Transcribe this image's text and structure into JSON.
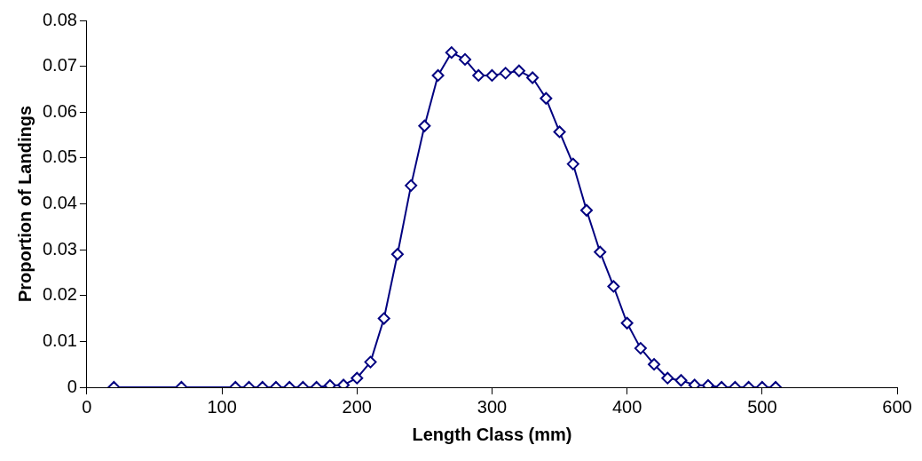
{
  "chart_data": {
    "type": "line",
    "xlabel": "Length Class (mm)",
    "ylabel": "Proportion of Landings",
    "x": [
      20,
      70,
      110,
      120,
      130,
      140,
      150,
      160,
      170,
      180,
      190,
      200,
      210,
      220,
      230,
      240,
      250,
      260,
      270,
      280,
      290,
      300,
      310,
      320,
      330,
      340,
      350,
      360,
      370,
      380,
      390,
      400,
      410,
      420,
      430,
      440,
      450,
      460,
      470,
      480,
      490,
      500,
      510
    ],
    "series": [
      {
        "color": "#000080",
        "values": [
          0,
          0,
          0,
          0,
          0,
          0,
          0,
          0,
          0,
          0.0004,
          0.0005,
          0.002,
          0.0055,
          0.015,
          0.029,
          0.044,
          0.057,
          0.068,
          0.073,
          0.0715,
          0.068,
          0.068,
          0.0685,
          0.069,
          0.0675,
          0.063,
          0.0557,
          0.0487,
          0.0386,
          0.0295,
          0.022,
          0.014,
          0.0085,
          0.005,
          0.002,
          0.0015,
          0.0005,
          0.0004,
          0,
          0,
          0,
          0,
          0
        ]
      }
    ],
    "xlim": [
      0,
      600
    ],
    "xticks": [
      0,
      100,
      200,
      300,
      400,
      500,
      600
    ],
    "ylim": [
      0,
      0.08
    ],
    "yticks": [
      0,
      0.01,
      0.02,
      0.03,
      0.04,
      0.05,
      0.06,
      0.07,
      0.08
    ],
    "grid": false,
    "legend": false,
    "marker": "diamond",
    "line_style": "solid"
  }
}
